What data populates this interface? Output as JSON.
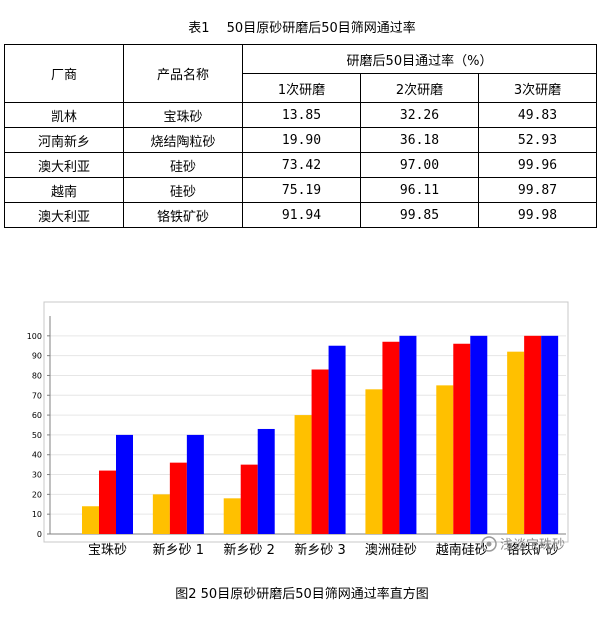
{
  "table": {
    "caption": "表1　 50目原砂研磨后50目筛网通过率",
    "header": {
      "maker": "厂商",
      "product": "产品名称",
      "group": "研磨后50目通过率（%）",
      "sub": [
        "1次研磨",
        "2次研磨",
        "3次研磨"
      ]
    },
    "rows": [
      {
        "maker": "凯林",
        "product": "宝珠砂",
        "v1": "13.85",
        "v2": "32.26",
        "v3": "49.83"
      },
      {
        "maker": "河南新乡",
        "product": "烧结陶粒砂",
        "v1": "19.90",
        "v2": "36.18",
        "v3": "52.93"
      },
      {
        "maker": "澳大利亚",
        "product": "硅砂",
        "v1": "73.42",
        "v2": "97.00",
        "v3": "99.96"
      },
      {
        "maker": "越南",
        "product": "硅砂",
        "v1": "75.19",
        "v2": "96.11",
        "v3": "99.87"
      },
      {
        "maker": "澳大利亚",
        "product": "铬铁矿砂",
        "v1": "91.94",
        "v2": "99.85",
        "v3": "99.98"
      }
    ]
  },
  "chart_data": {
    "type": "bar",
    "title": "",
    "xlabel": "",
    "ylabel": "",
    "ylim": [
      0,
      110
    ],
    "yticks": [
      0,
      10,
      20,
      30,
      40,
      50,
      60,
      70,
      80,
      90,
      100
    ],
    "categories": [
      "宝珠砂",
      "新乡砂 1",
      "新乡砂 2",
      "新乡砂 3",
      "澳洲硅砂",
      "越南硅砂",
      "铬铁矿砂"
    ],
    "series": [
      {
        "color": "#FFC000",
        "values": [
          14,
          20,
          18,
          60,
          73,
          75,
          92
        ]
      },
      {
        "color": "#FF0000",
        "values": [
          32,
          36,
          35,
          83,
          97,
          96,
          100
        ]
      },
      {
        "color": "#0000FF",
        "values": [
          50,
          50,
          53,
          95,
          100,
          100,
          100
        ]
      }
    ]
  },
  "figure": {
    "caption": "图2  50目原砂研磨后50目筛网通过率直方图",
    "watermark": "浅谈宝珠砂"
  }
}
